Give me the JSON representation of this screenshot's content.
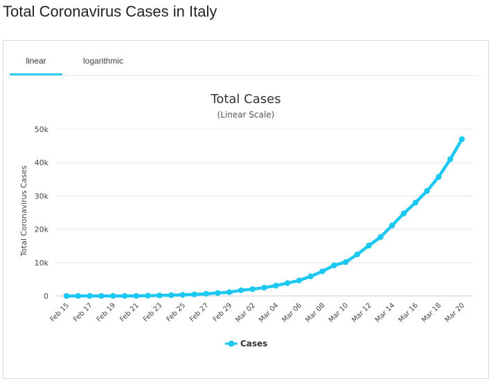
{
  "page": {
    "title": "Total Coronavirus Cases in Italy"
  },
  "tabs": [
    {
      "label": "linear",
      "active": true
    },
    {
      "label": "logarithmic",
      "active": false
    }
  ],
  "colors": {
    "series": "#1cc8f0",
    "tab_underline": "#2ecbf2",
    "grid": "#e6e6e6"
  },
  "chart_data": {
    "type": "line",
    "title": "Total Cases",
    "subtitle": "(Linear Scale)",
    "ylabel": "Total Coronavirus Cases",
    "xlabel": "",
    "ylim": [
      0,
      50000
    ],
    "yticks": [
      0,
      10000,
      20000,
      30000,
      40000,
      50000
    ],
    "ytick_labels": [
      "0",
      "10k",
      "20k",
      "30k",
      "40k",
      "50k"
    ],
    "x": [
      "Feb 15",
      "Feb 16",
      "Feb 17",
      "Feb 18",
      "Feb 19",
      "Feb 20",
      "Feb 21",
      "Feb 22",
      "Feb 23",
      "Feb 24",
      "Feb 25",
      "Feb 26",
      "Feb 27",
      "Feb 28",
      "Feb 29",
      "Mar 01",
      "Mar 02",
      "Mar 03",
      "Mar 04",
      "Mar 05",
      "Mar 06",
      "Mar 07",
      "Mar 08",
      "Mar 09",
      "Mar 10",
      "Mar 11",
      "Mar 12",
      "Mar 13",
      "Mar 14",
      "Mar 15",
      "Mar 16",
      "Mar 17",
      "Mar 18",
      "Mar 19",
      "Mar 20"
    ],
    "xtick_labels": [
      "Feb 15",
      "Feb 17",
      "Feb 19",
      "Feb 21",
      "Feb 23",
      "Feb 25",
      "Feb 27",
      "Feb 29",
      "Mar 02",
      "Mar 04",
      "Mar 06",
      "Mar 08",
      "Mar 10",
      "Mar 12",
      "Mar 14",
      "Mar 16",
      "Mar 18",
      "Mar 20"
    ],
    "series": [
      {
        "name": "Cases",
        "values": [
          3,
          3,
          3,
          3,
          3,
          3,
          20,
          79,
          152,
          229,
          322,
          453,
          655,
          888,
          1128,
          1694,
          2036,
          2502,
          3089,
          3858,
          4636,
          5883,
          7375,
          9172,
          10149,
          12462,
          15113,
          17660,
          21157,
          24747,
          27980,
          31506,
          35713,
          41035,
          47021
        ]
      }
    ],
    "legend": "bottom-center",
    "grid": true
  }
}
